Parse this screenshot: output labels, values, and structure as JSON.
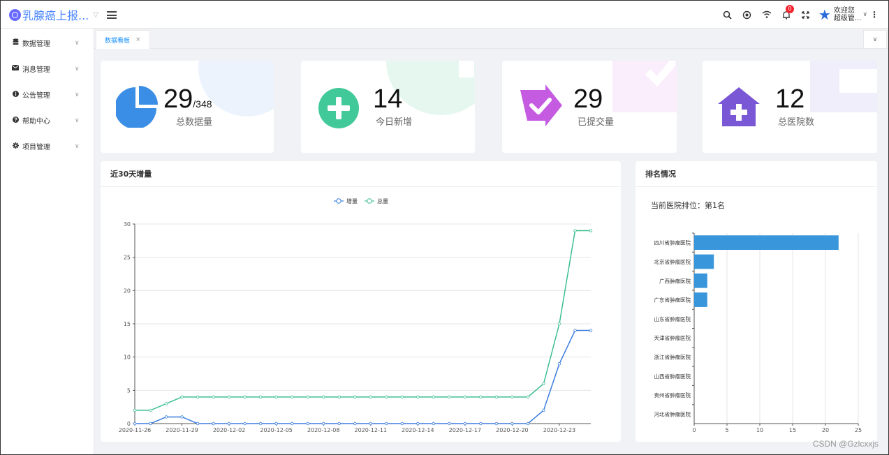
{
  "app": {
    "title": "乳腺癌上报..."
  },
  "user": {
    "welcome": "欢迎您",
    "name": "超级管..."
  },
  "notifications": {
    "count": "0"
  },
  "sidebar": {
    "items": [
      {
        "label": "数据管理"
      },
      {
        "label": "消息管理"
      },
      {
        "label": "公告管理"
      },
      {
        "label": "帮助中心"
      },
      {
        "label": "项目管理"
      }
    ]
  },
  "tabs": [
    {
      "label": "数据看板",
      "close": "×"
    }
  ],
  "stats": [
    {
      "value": "29",
      "suffix": "/348",
      "label": "总数据量",
      "color": "#3a8ee6"
    },
    {
      "value": "14",
      "suffix": "",
      "label": "今日新增",
      "color": "#41c99a"
    },
    {
      "value": "29",
      "suffix": "",
      "label": "已提交量",
      "color": "#c45be0"
    },
    {
      "value": "12",
      "suffix": "",
      "label": "总医院数",
      "color": "#7957d5"
    }
  ],
  "trend_panel": {
    "title": "近30天增量"
  },
  "rank_panel": {
    "title": "排名情况",
    "rank_text": "当前医院排位：第1名"
  },
  "watermark": "CSDN @Gzlcxxjs",
  "chart_data": [
    {
      "type": "line",
      "title": "",
      "x": [
        "2020-11-26",
        "2020-11-27",
        "2020-11-28",
        "2020-11-29",
        "2020-11-30",
        "2020-12-01",
        "2020-12-02",
        "2020-12-03",
        "2020-12-04",
        "2020-12-05",
        "2020-12-06",
        "2020-12-07",
        "2020-12-08",
        "2020-12-09",
        "2020-12-10",
        "2020-12-11",
        "2020-12-12",
        "2020-12-13",
        "2020-12-14",
        "2020-12-15",
        "2020-12-16",
        "2020-12-17",
        "2020-12-18",
        "2020-12-19",
        "2020-12-20",
        "2020-12-21",
        "2020-12-22",
        "2020-12-23",
        "2020-12-24",
        "2020-12-25"
      ],
      "xticks": [
        "2020-11-26",
        "2020-11-29",
        "2020-12-02",
        "2020-12-05",
        "2020-12-08",
        "2020-12-11",
        "2020-12-14",
        "2020-12-17",
        "2020-12-20",
        "2020-12-23"
      ],
      "yticks": [
        0,
        5,
        10,
        15,
        20,
        25,
        30
      ],
      "ylim": [
        0,
        30
      ],
      "legend": "top-center",
      "grid": true,
      "series": [
        {
          "name": "增量",
          "color": "#3b7ddd",
          "values": [
            0,
            0,
            1,
            1,
            0,
            0,
            0,
            0,
            0,
            0,
            0,
            0,
            0,
            0,
            0,
            0,
            0,
            0,
            0,
            0,
            0,
            0,
            0,
            0,
            0,
            0,
            2,
            9,
            14,
            14
          ]
        },
        {
          "name": "总量",
          "color": "#3dbf8f",
          "values": [
            2,
            2,
            3,
            4,
            4,
            4,
            4,
            4,
            4,
            4,
            4,
            4,
            4,
            4,
            4,
            4,
            4,
            4,
            4,
            4,
            4,
            4,
            4,
            4,
            4,
            4,
            6,
            15,
            29,
            29
          ]
        }
      ]
    },
    {
      "type": "bar",
      "orientation": "horizontal",
      "title": "",
      "categories": [
        "四川省肿瘤医院",
        "北京省肿瘤医院",
        "广西肿瘤医院",
        "广东省肿瘤医院",
        "山东省肿瘤医院",
        "天津省肿瘤医院",
        "浙江省肿瘤医院",
        "山西省肿瘤医院",
        "贵州省肿瘤医院",
        "河北省肿瘤医院"
      ],
      "values": [
        22,
        3,
        2,
        2,
        0,
        0,
        0,
        0,
        0,
        0
      ],
      "xlim": [
        0,
        25
      ],
      "xticks": [
        0,
        5,
        10,
        15,
        20,
        25
      ],
      "color": "#3a96db",
      "grid": true
    }
  ]
}
